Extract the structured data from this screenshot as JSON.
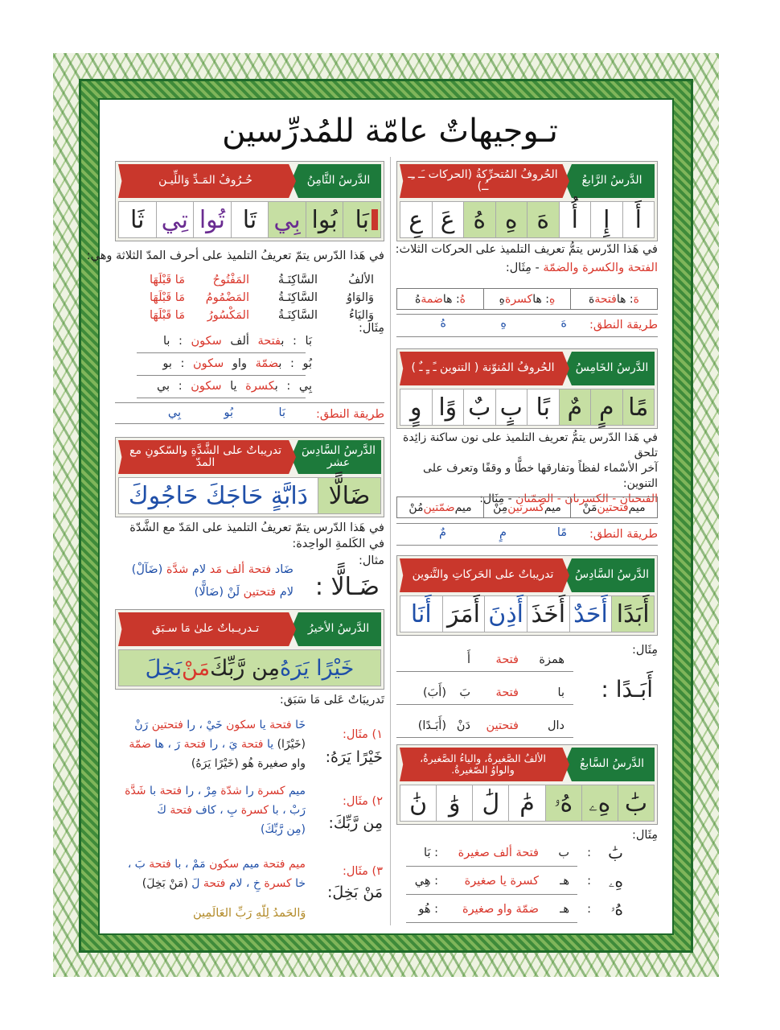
{
  "colors": {
    "k": "#222222",
    "r": "#d9362b",
    "b": "#1f4fa8",
    "p": "#6a2c91",
    "g": "#b38b2a",
    "tag": "#1d7a3b",
    "bar": "#c9372c",
    "cell_highlight": "#c6dfa3"
  },
  "title": "تـوجيهاتٌ عامّة للمُدرِّسين",
  "pron_label": "طريقة النطق:",
  "example_label": "مِثَال:",
  "right": {
    "l4": {
      "tag": "الدَّرسُ الرَّابعُ",
      "title": "الحُروفُ المُتحرِّكةُ (الحركات ـَـ ـِـ ـُـ)",
      "letters": [
        [
          "أَ",
          "k",
          false
        ],
        [
          "إِ",
          "k",
          false
        ],
        [
          "أُ",
          "k",
          false
        ],
        [
          "هَ",
          "k",
          true
        ],
        [
          "هِ",
          "k",
          true
        ],
        [
          "هُ",
          "k",
          true
        ],
        [
          "عَ",
          "k",
          false
        ],
        [
          "عِ",
          "k",
          false
        ]
      ],
      "desc": [
        [
          [
            "في هَذا الدّرس يتمُّ تعريف التلميذ على الحركات الثلاث:",
            "k"
          ]
        ],
        [
          [
            "الفتحة والكسرة والضمّة",
            "r"
          ],
          [
            " - مِثَال:",
            "k"
          ]
        ]
      ],
      "table": [
        [
          [
            "هَ",
            "r"
          ],
          [
            " : ها ",
            "k"
          ],
          [
            "فتحة",
            "r"
          ],
          [
            " هَ",
            "k"
          ]
        ],
        [
          [
            "هِ",
            "r"
          ],
          [
            " : ها ",
            "k"
          ],
          [
            "كسرة",
            "r"
          ],
          [
            " هِ",
            "k"
          ]
        ],
        [
          [
            "هُ",
            "r"
          ],
          [
            " : ها ",
            "k"
          ],
          [
            "ضمة",
            "r"
          ],
          [
            " هُ",
            "k"
          ]
        ]
      ],
      "pron": [
        "هَ",
        "هِ",
        "هُ"
      ]
    },
    "l5": {
      "tag": "الدَّرسُ الخَامِسُ",
      "title": "الحُروفُ المُنوّنة ( التنوين ـً ـٍ ـٌ )",
      "letters": [
        [
          "مًا",
          "k",
          true
        ],
        [
          "مٍ",
          "k",
          true
        ],
        [
          "مٌ",
          "k",
          true
        ],
        [
          "بًا",
          "k",
          false
        ],
        [
          "بٍ",
          "k",
          false
        ],
        [
          "بٌ",
          "k",
          false
        ],
        [
          "وًا",
          "k",
          false
        ],
        [
          "وٍ",
          "k",
          false
        ]
      ],
      "desc": [
        [
          [
            "في هَذا الدّرس يتمُّ تعريف التلميذ على نون ساكنة زائِدة تلحق",
            "k"
          ]
        ],
        [
          [
            "آخر الأسْماء لفظاً وتفارقها خطًّا و وقفًا وتعرف على التنوين:",
            "k"
          ]
        ],
        [
          [
            "الفتحتان - الكسرتان - الضمّتان",
            "r"
          ],
          [
            " - مِثَال:",
            "k"
          ]
        ]
      ],
      "table": [
        [
          [
            "ميم ",
            "k"
          ],
          [
            "فتحتين",
            "r"
          ],
          [
            " مَنْ",
            "k"
          ]
        ],
        [
          [
            "ميم ",
            "k"
          ],
          [
            "كسرتين",
            "r"
          ],
          [
            " مِنْ",
            "k"
          ]
        ],
        [
          [
            "ميم ",
            "k"
          ],
          [
            "ضمّتين",
            "r"
          ],
          [
            " مُنْ",
            "k"
          ]
        ]
      ],
      "pron": [
        "مًا",
        "مٍ",
        "مٌ"
      ]
    },
    "l6": {
      "tag": "الدَّرسُ السَّادِسُ",
      "title": "تدريباتٌ على الحَركاتِ والتَّنوين",
      "letters": [
        [
          "أَبَدًا",
          "k",
          true
        ],
        [
          "أَحَدٌ",
          "b",
          false
        ],
        [
          "أَخَذَ",
          "k",
          false
        ],
        [
          "أَذِنَ",
          "b",
          false
        ],
        [
          "أَمَرَ",
          "k",
          false
        ],
        [
          "أَنَا",
          "b",
          false
        ]
      ],
      "word": "أَبَـدًا :",
      "rows": [
        [
          "همزة",
          "فتحة",
          "أَ",
          ""
        ],
        [
          "با",
          "فتحة",
          "بَ",
          "(أَبَ)"
        ],
        [
          "دال",
          "فتحتين",
          "دَنْ",
          "(أَبَـدًا)"
        ]
      ]
    },
    "l7": {
      "tag": "الدَّرسُ السَّابعُ",
      "title": "الألفُ الصَّغيرةُ، والياءُ الصَّغيرةُ، والواوُ الصّغيرةُ.",
      "letters": [
        [
          "بَٰ",
          "k",
          true
        ],
        [
          "هِۦ",
          "k",
          true
        ],
        [
          "هُۥ",
          "k",
          true
        ],
        [
          "مَٰ",
          "k",
          false
        ],
        [
          "لَٰ",
          "k",
          false
        ],
        [
          "وَٰ",
          "k",
          false
        ],
        [
          "نَٰ",
          "k",
          false
        ]
      ],
      "rows": [
        [
          "بَٰ",
          ":",
          "ب",
          "فتحة ألف صغيرة",
          ": بَا"
        ],
        [
          "هِۦ",
          ":",
          "هـ",
          "كسرة يا صغيرة",
          ": هِي"
        ],
        [
          "هُۥ",
          ":",
          "هـ",
          "ضمّة واو صغيرة",
          ": هُو"
        ]
      ]
    }
  },
  "left": {
    "l8": {
      "tag": "الدَّرسُ الثَّامِنُ",
      "title": "حُـرُوفُ المَـدِّ وَاللِّيـن",
      "letters": [
        [
          "بَا",
          "k",
          true
        ],
        [
          "بُوا",
          "k",
          true
        ],
        [
          "بِي",
          "p",
          true
        ],
        [
          "تَا",
          "k",
          false
        ],
        [
          "تُوا",
          "p",
          false
        ],
        [
          "تِي",
          "p",
          false
        ],
        [
          "ثَا",
          "k",
          false
        ]
      ],
      "desc": [
        [
          [
            "في هَذا الدّرس يتمّ تعريفُ التلميذ على أحرف المدّ الثلاثة وهي:",
            "k"
          ]
        ]
      ],
      "madd": [
        [
          "الألفُ",
          "السَّاكِنَـةُ",
          "المَفْتُوحُ",
          "مَا قَبْلَهَا"
        ],
        [
          "وَالوَاوُ",
          "السَّاكِنَـةُ",
          "المَضْمُومُ",
          "مَا قَبْلَهَا"
        ],
        [
          "وَاليَاءُ",
          "السَّاكِنَـةُ",
          "المَكْسُورُ",
          "مَا قَبْلَهَا"
        ]
      ],
      "rows": [
        [
          [
            "بَا",
            "k"
          ],
          [
            " : ",
            "k"
          ],
          [
            "ب",
            "k"
          ],
          [
            "فتحة",
            "r"
          ],
          [
            " ألف ",
            "k"
          ],
          [
            "سكون",
            "r"
          ],
          [
            " : با",
            "k"
          ]
        ],
        [
          [
            "بُو",
            "k"
          ],
          [
            " : ",
            "k"
          ],
          [
            "ب",
            "k"
          ],
          [
            "ضمّة",
            "r"
          ],
          [
            " واو ",
            "k"
          ],
          [
            "سكون",
            "r"
          ],
          [
            " : بو",
            "k"
          ]
        ],
        [
          [
            "بِي",
            "k"
          ],
          [
            " : ",
            "k"
          ],
          [
            "ب",
            "k"
          ],
          [
            "كسرة",
            "r"
          ],
          [
            " يا ",
            "k"
          ],
          [
            "سكون",
            "r"
          ],
          [
            " : بي",
            "k"
          ]
        ]
      ],
      "pron": [
        "بَا",
        "بُو",
        "بِي"
      ]
    },
    "l16": {
      "tag": "الدَّرسُ السَّادِسَ عشر",
      "title": "تدريباتٌ على الشَّدَّةِ والسّكونِ مع المدّ",
      "letters": [
        [
          "ضَالًّا",
          "k",
          true
        ],
        [
          "دَابَّةٍ حَاجَكَ حَاجُوكَ",
          "b",
          false
        ]
      ],
      "desc": [
        [
          [
            "في هَذا الدّرس يتمّ تعريفُ التلميذ على المَدّ مع الشَّدّة",
            "k"
          ]
        ],
        [
          [
            "في الكَلمةِ الواحِدة:",
            "k"
          ]
        ]
      ],
      "example_label": "مثال:",
      "word": "ضَـالًّا :",
      "lines": [
        [
          [
            "ضَاد ",
            "b"
          ],
          [
            "فتحة ألف مَد ",
            "r"
          ],
          [
            "لام ",
            "b"
          ],
          [
            "شدَّة ",
            "r"
          ],
          [
            "(ضَآلْ)",
            "b"
          ]
        ],
        [
          [
            "لام ",
            "b"
          ],
          [
            "فتحتين ",
            "r"
          ],
          [
            "لَنْ ",
            "b"
          ],
          [
            "(ضَالًّا)",
            "b"
          ]
        ]
      ]
    },
    "last": {
      "tag": "الدَّرسُ الأخيرُ",
      "title": "تـدريـباتٌ علىٰ مَا سـبَق",
      "row": [
        [
          "خَيْرًا يَرَهُ ",
          "b"
        ],
        [
          "مِن رَّبِّكَ ",
          "k"
        ],
        [
          "مَنْ ",
          "r"
        ],
        [
          "بَخِلَ",
          "b"
        ]
      ],
      "subhead": "تَدريبَاتٌ عَلى مَا سَبَق:",
      "examples": [
        {
          "label": "١) مثَال:",
          "word": "خَيْرًا يَرَهُ:",
          "lines": [
            [
              [
                "خَا ",
                "b"
              ],
              [
                "فتحة ",
                "r"
              ],
              [
                "يا ",
                "b"
              ],
              [
                "سكون ",
                "r"
              ],
              [
                "خَيْ ، ",
                "b"
              ],
              [
                "را ",
                "b"
              ],
              [
                "فتحتين ",
                "r"
              ],
              [
                "رَنْ",
                "b"
              ]
            ],
            [
              [
                "(خَيْرًا) ",
                "k"
              ],
              [
                "يا ",
                "b"
              ],
              [
                "فتحة ",
                "r"
              ],
              [
                "يَ ، ",
                "b"
              ],
              [
                "را ",
                "b"
              ],
              [
                "فتحة ",
                "r"
              ],
              [
                "رَ ، ",
                "b"
              ],
              [
                "ها ",
                "b"
              ],
              [
                "ضمّة",
                "r"
              ]
            ],
            [
              [
                "واو صغيرة هُو (خَيْرًا يَرَهُ)",
                "k"
              ]
            ]
          ]
        },
        {
          "label": "٢) مثَال:",
          "word": "مِن رَّبِّكَ:",
          "lines": [
            [
              [
                "ميم ",
                "b"
              ],
              [
                "كسرة ",
                "r"
              ],
              [
                "را ",
                "b"
              ],
              [
                "شدّة ",
                "r"
              ],
              [
                "مِرْ ، ",
                "b"
              ],
              [
                "را ",
                "b"
              ],
              [
                "فتحة ",
                "r"
              ],
              [
                "با ",
                "b"
              ],
              [
                "شَدَّة",
                "r"
              ]
            ],
            [
              [
                "رَبْ ، ",
                "b"
              ],
              [
                "با ",
                "b"
              ],
              [
                "كسرة ",
                "r"
              ],
              [
                "بِ ، ",
                "b"
              ],
              [
                "كاف ",
                "b"
              ],
              [
                "فتحة ",
                "r"
              ],
              [
                "كَ",
                "b"
              ]
            ],
            [
              [
                "(مِن رَّبِّكَ)",
                "b"
              ]
            ]
          ]
        },
        {
          "label": "٣) مثَال:",
          "word": "مَنْ بَخِلَ:",
          "lines": [
            [
              [
                "ميم ",
                "r"
              ],
              [
                "فتحة ",
                "r"
              ],
              [
                "ميم ",
                "b"
              ],
              [
                "سكون ",
                "r"
              ],
              [
                "مَمْ ، ",
                "b"
              ],
              [
                "با ",
                "b"
              ],
              [
                "فتحة ",
                "r"
              ],
              [
                "بَ ،",
                "b"
              ]
            ],
            [
              [
                "خا ",
                "b"
              ],
              [
                "كسرة ",
                "r"
              ],
              [
                "خِ ، ",
                "b"
              ],
              [
                "لام ",
                "b"
              ],
              [
                "فتحة ",
                "r"
              ],
              [
                "لَ ",
                "b"
              ],
              [
                "(مَنْ بَخِلَ)",
                "k"
              ]
            ]
          ]
        }
      ],
      "closing": "وَالحَمدُ لِلّهِ رَبِّ العَالَمِين"
    }
  }
}
